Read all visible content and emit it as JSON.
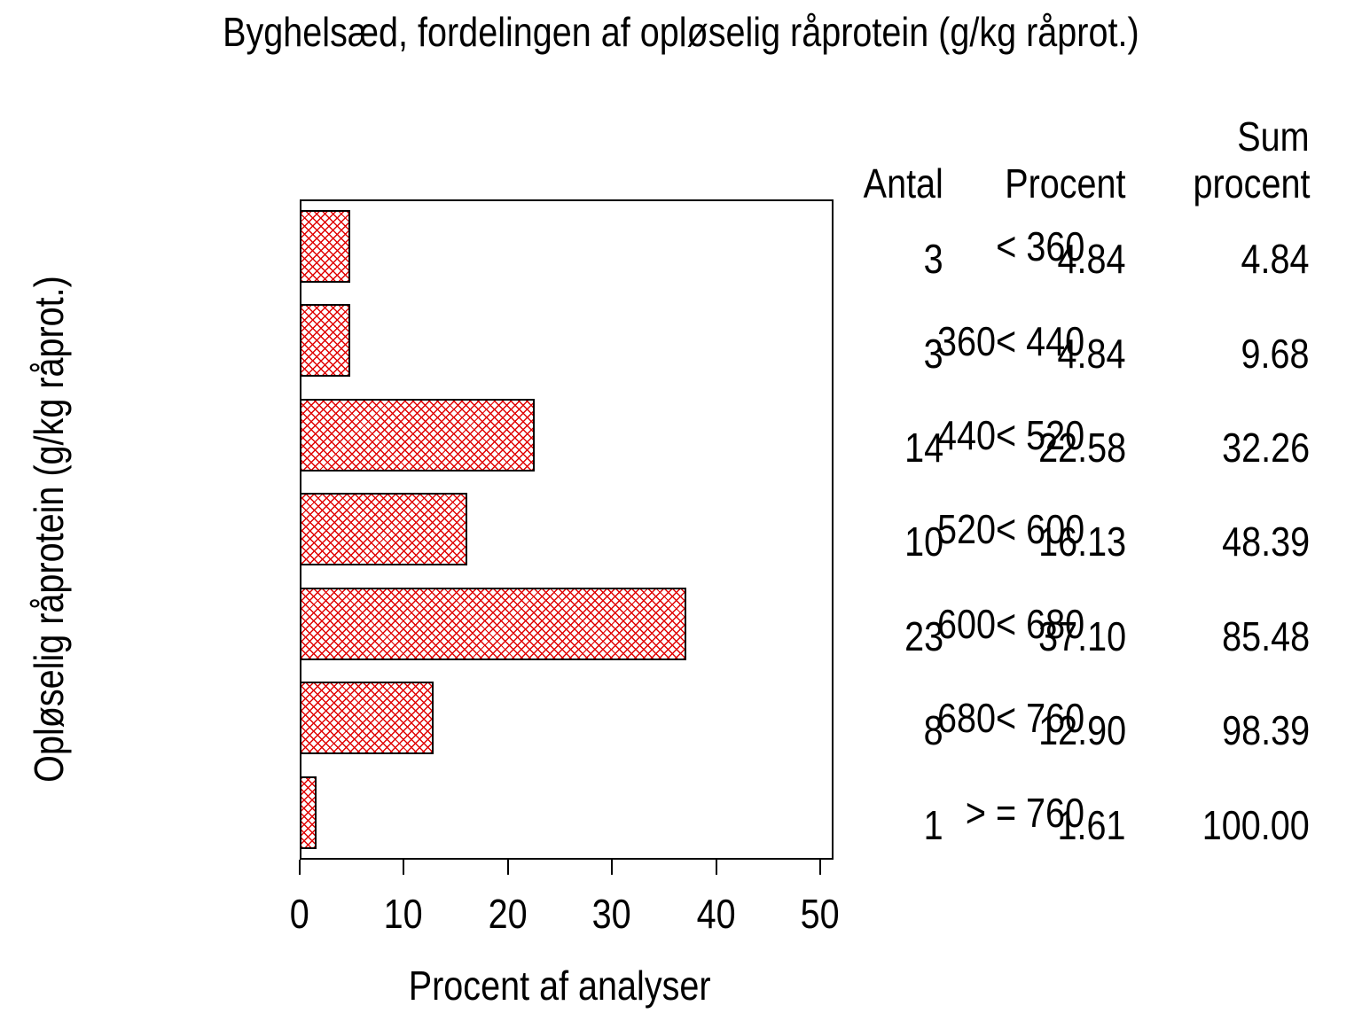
{
  "chart_data": {
    "type": "bar",
    "orientation": "horizontal",
    "title": "Byghelsæd, fordelingen af opløselig råprotein (g/kg råprot.)",
    "xlabel": "Procent af analyser",
    "ylabel": "Opløselig råprotein (g/kg råprot.)",
    "xlim": [
      0,
      50
    ],
    "xticks": [
      0,
      10,
      20,
      30,
      40,
      50
    ],
    "grid": "off",
    "legend": "none",
    "categories": [
      "< 360",
      "360< 440",
      "440< 520",
      "520< 600",
      "600< 680",
      "680< 760",
      "> = 760"
    ],
    "values": [
      4.84,
      4.84,
      22.58,
      16.13,
      37.1,
      12.9,
      1.61
    ],
    "bar_fill": "#ffffff",
    "hatch_color": "#e00000",
    "bar_border_color": "#000000",
    "frame_color": "#000000",
    "table": {
      "headers": {
        "antal": "Antal",
        "procent": "Procent",
        "sum_top": "Sum",
        "sum_bottom": "procent"
      },
      "rows": [
        {
          "antal": "3",
          "procent": "4.84",
          "sum": "4.84"
        },
        {
          "antal": "3",
          "procent": "4.84",
          "sum": "9.68"
        },
        {
          "antal": "14",
          "procent": "22.58",
          "sum": "32.26"
        },
        {
          "antal": "10",
          "procent": "16.13",
          "sum": "48.39"
        },
        {
          "antal": "23",
          "procent": "37.10",
          "sum": "85.48"
        },
        {
          "antal": "8",
          "procent": "12.90",
          "sum": "98.39"
        },
        {
          "antal": "1",
          "procent": "1.61",
          "sum": "100.00"
        }
      ]
    }
  }
}
